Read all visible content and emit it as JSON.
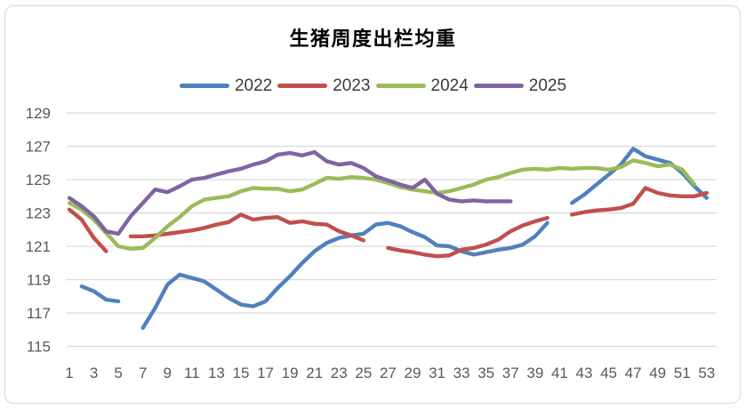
{
  "title": "生猪周度出栏均重",
  "chart_data": {
    "type": "line",
    "title": "生猪周度出栏均重",
    "xlabel": "",
    "ylabel": "",
    "legend_position": "top",
    "grid": true,
    "x": [
      1,
      2,
      3,
      4,
      5,
      6,
      7,
      8,
      9,
      10,
      11,
      12,
      13,
      14,
      15,
      16,
      17,
      18,
      19,
      20,
      21,
      22,
      23,
      24,
      25,
      26,
      27,
      28,
      29,
      30,
      31,
      32,
      33,
      34,
      35,
      36,
      37,
      38,
      39,
      40,
      41,
      42,
      43,
      44,
      45,
      46,
      47,
      48,
      49,
      50,
      51,
      52,
      53
    ],
    "x_tick_labels": [
      1,
      3,
      5,
      7,
      9,
      11,
      13,
      15,
      17,
      19,
      21,
      23,
      25,
      27,
      29,
      31,
      33,
      35,
      37,
      39,
      41,
      43,
      45,
      47,
      49,
      51,
      53
    ],
    "ylim": [
      115,
      129
    ],
    "y_ticks": [
      115,
      117,
      119,
      121,
      123,
      125,
      127,
      129
    ],
    "series": [
      {
        "name": "2022",
        "color": "#4F81BD",
        "values": [
          null,
          118.6,
          118.3,
          117.8,
          117.7,
          null,
          116.1,
          117.3,
          118.7,
          119.3,
          119.1,
          118.9,
          118.4,
          117.9,
          117.5,
          117.4,
          117.7,
          118.5,
          119.2,
          120.0,
          120.7,
          121.2,
          121.5,
          121.65,
          121.75,
          122.3,
          122.4,
          122.2,
          121.85,
          121.55,
          121.05,
          121.0,
          120.7,
          120.5,
          120.65,
          120.8,
          120.9,
          121.1,
          121.6,
          122.4,
          null,
          123.6,
          124.1,
          124.7,
          125.3,
          125.9,
          126.85,
          126.4,
          126.2,
          126.0,
          125.4,
          124.6,
          123.9
        ]
      },
      {
        "name": "2023",
        "color": "#C0504D",
        "values": [
          123.2,
          122.6,
          121.5,
          120.7,
          null,
          121.6,
          121.6,
          121.65,
          121.75,
          121.85,
          121.95,
          122.1,
          122.3,
          122.45,
          122.9,
          122.6,
          122.7,
          122.75,
          122.4,
          122.5,
          122.35,
          122.3,
          121.9,
          121.65,
          121.35,
          null,
          120.9,
          120.75,
          120.65,
          120.5,
          120.4,
          120.45,
          120.8,
          120.9,
          121.1,
          121.4,
          121.9,
          122.25,
          122.5,
          122.7,
          null,
          122.9,
          123.05,
          123.15,
          123.2,
          123.3,
          123.55,
          124.5,
          124.2,
          124.05,
          124.0,
          124.0,
          124.2
        ]
      },
      {
        "name": "2024",
        "color": "#9BBB59",
        "values": [
          123.6,
          123.2,
          122.6,
          121.8,
          121.0,
          120.85,
          120.9,
          121.5,
          122.2,
          122.75,
          123.4,
          123.8,
          123.9,
          124.0,
          124.3,
          124.5,
          124.45,
          124.45,
          124.3,
          124.4,
          124.75,
          125.1,
          125.05,
          125.15,
          125.1,
          125.0,
          124.8,
          124.55,
          124.4,
          124.3,
          124.2,
          124.3,
          124.5,
          124.7,
          125.0,
          125.15,
          125.4,
          125.6,
          125.65,
          125.6,
          125.7,
          125.65,
          125.7,
          125.7,
          125.6,
          125.75,
          126.15,
          126.0,
          125.8,
          125.9,
          125.6,
          124.7,
          null
        ]
      },
      {
        "name": "2025",
        "color": "#8064A2",
        "values": [
          123.9,
          123.4,
          122.8,
          121.9,
          121.75,
          122.8,
          123.6,
          124.4,
          124.25,
          124.6,
          125.0,
          125.1,
          125.3,
          125.5,
          125.65,
          125.9,
          126.1,
          126.5,
          126.6,
          126.45,
          126.65,
          126.1,
          125.9,
          126.0,
          125.7,
          125.2,
          124.95,
          124.7,
          124.5,
          125.0,
          124.15,
          123.8,
          123.7,
          123.75,
          123.7,
          123.7,
          123.7,
          null,
          null,
          null,
          null,
          null,
          null,
          null,
          null,
          null,
          null,
          null,
          null,
          null,
          null,
          null,
          null
        ]
      }
    ]
  },
  "style": {
    "gridline_color": "#d9d9d9",
    "axis_label_color": "#595959",
    "background": "#ffffff",
    "border_color": "#d9d9d9"
  }
}
